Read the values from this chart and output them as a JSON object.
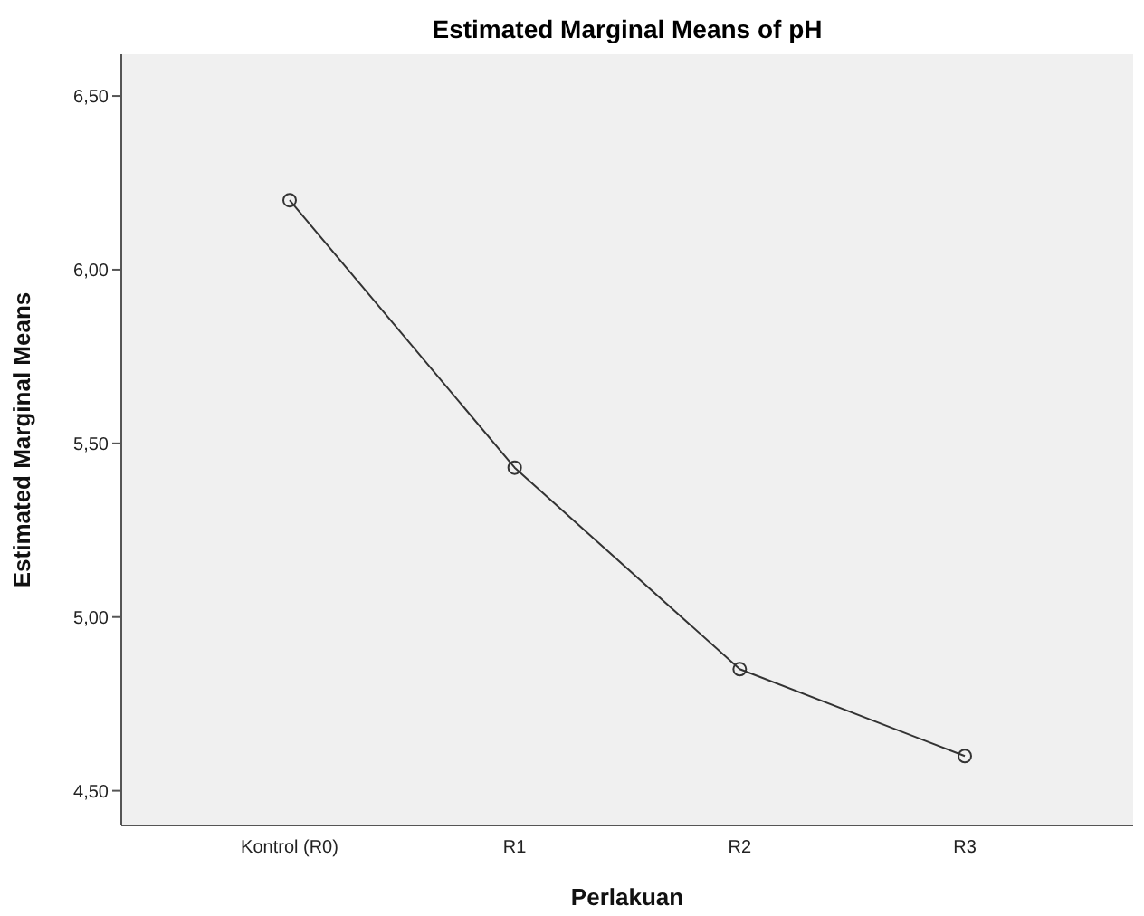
{
  "chart_data": {
    "type": "line",
    "title": "Estimated Marginal Means of pH",
    "xlabel": "Perlakuan",
    "ylabel": "Estimated Marginal Means",
    "categories": [
      "Kontrol (R0)",
      "R1",
      "R2",
      "R3"
    ],
    "series": [
      {
        "color": "#333333",
        "values": [
          6.2,
          5.43,
          4.85,
          4.6
        ]
      }
    ],
    "ylim": [
      4.4,
      6.62
    ],
    "yticks": [
      {
        "value": 4.5,
        "label": "4,50"
      },
      {
        "value": 5,
        "label": "5,00"
      },
      {
        "value": 5.5,
        "label": "5,50"
      },
      {
        "value": 6,
        "label": "6,00"
      },
      {
        "value": 6.5,
        "label": "6,50"
      }
    ],
    "marker": "circle",
    "line_style": "solid",
    "legend": false
  }
}
